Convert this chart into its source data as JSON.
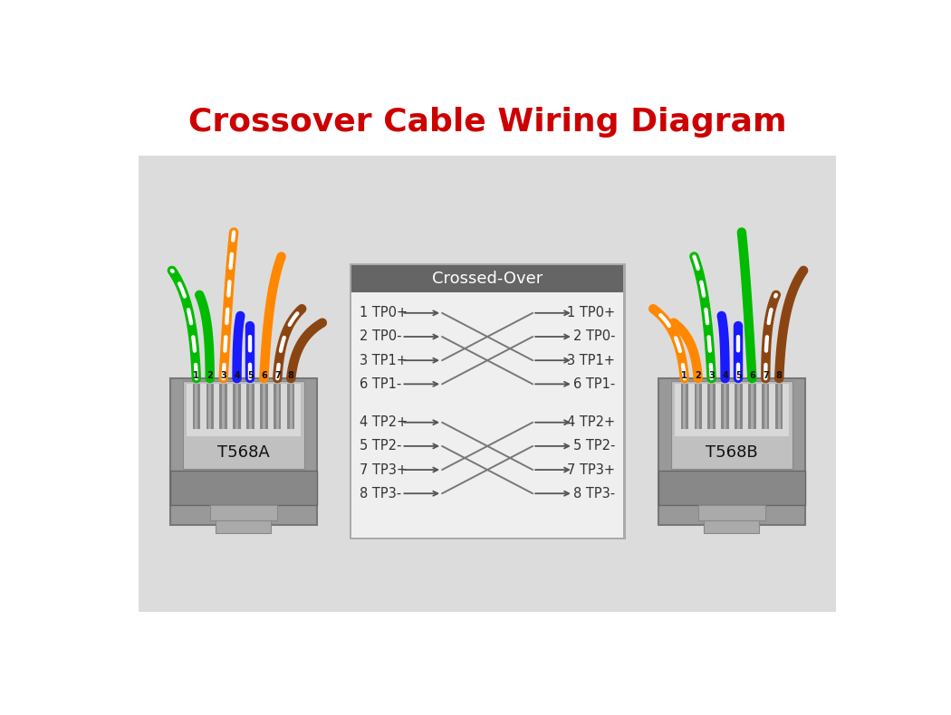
{
  "title": "Crossover Cable Wiring Diagram",
  "title_color": "#cc0000",
  "title_fontsize": 26,
  "title_fontweight": "bold",
  "bg_color": "#dcdcdc",
  "figure_bg": "#ffffff",
  "connector_label_A": "T568A",
  "connector_label_B": "T568B",
  "box_header_color": "#656565",
  "box_body_color": "#eeeeee",
  "box_title": "Crossed-Over",
  "left_labels_g1": [
    "1 TP0+",
    "2 TP0-",
    "3 TP1+",
    "6 TP1-"
  ],
  "right_labels_g1": [
    "1 TP0+",
    "2 TP0-",
    "3 TP1+",
    "6 TP1-"
  ],
  "left_labels_g2": [
    "4 TP2+",
    "5 TP2-",
    "7 TP3+",
    "8 TP3-"
  ],
  "right_labels_g2": [
    "4 TP2+",
    "5 TP2-",
    "7 TP3+",
    "8 TP3-"
  ],
  "cross_map": [
    2,
    3,
    0,
    1
  ],
  "wires_A": [
    [
      "#00bb00",
      true
    ],
    [
      "#00bb00",
      false
    ],
    [
      "#ff8800",
      true
    ],
    [
      "#1a1aff",
      false
    ],
    [
      "#1a1aff",
      true
    ],
    [
      "#ff8800",
      false
    ],
    [
      "#8b4513",
      true
    ],
    [
      "#8b4513",
      false
    ]
  ],
  "wires_B": [
    [
      "#ff8800",
      true
    ],
    [
      "#ff8800",
      false
    ],
    [
      "#00bb00",
      true
    ],
    [
      "#1a1aff",
      false
    ],
    [
      "#1a1aff",
      true
    ],
    [
      "#00bb00",
      false
    ],
    [
      "#8b4513",
      true
    ],
    [
      "#8b4513",
      false
    ]
  ]
}
